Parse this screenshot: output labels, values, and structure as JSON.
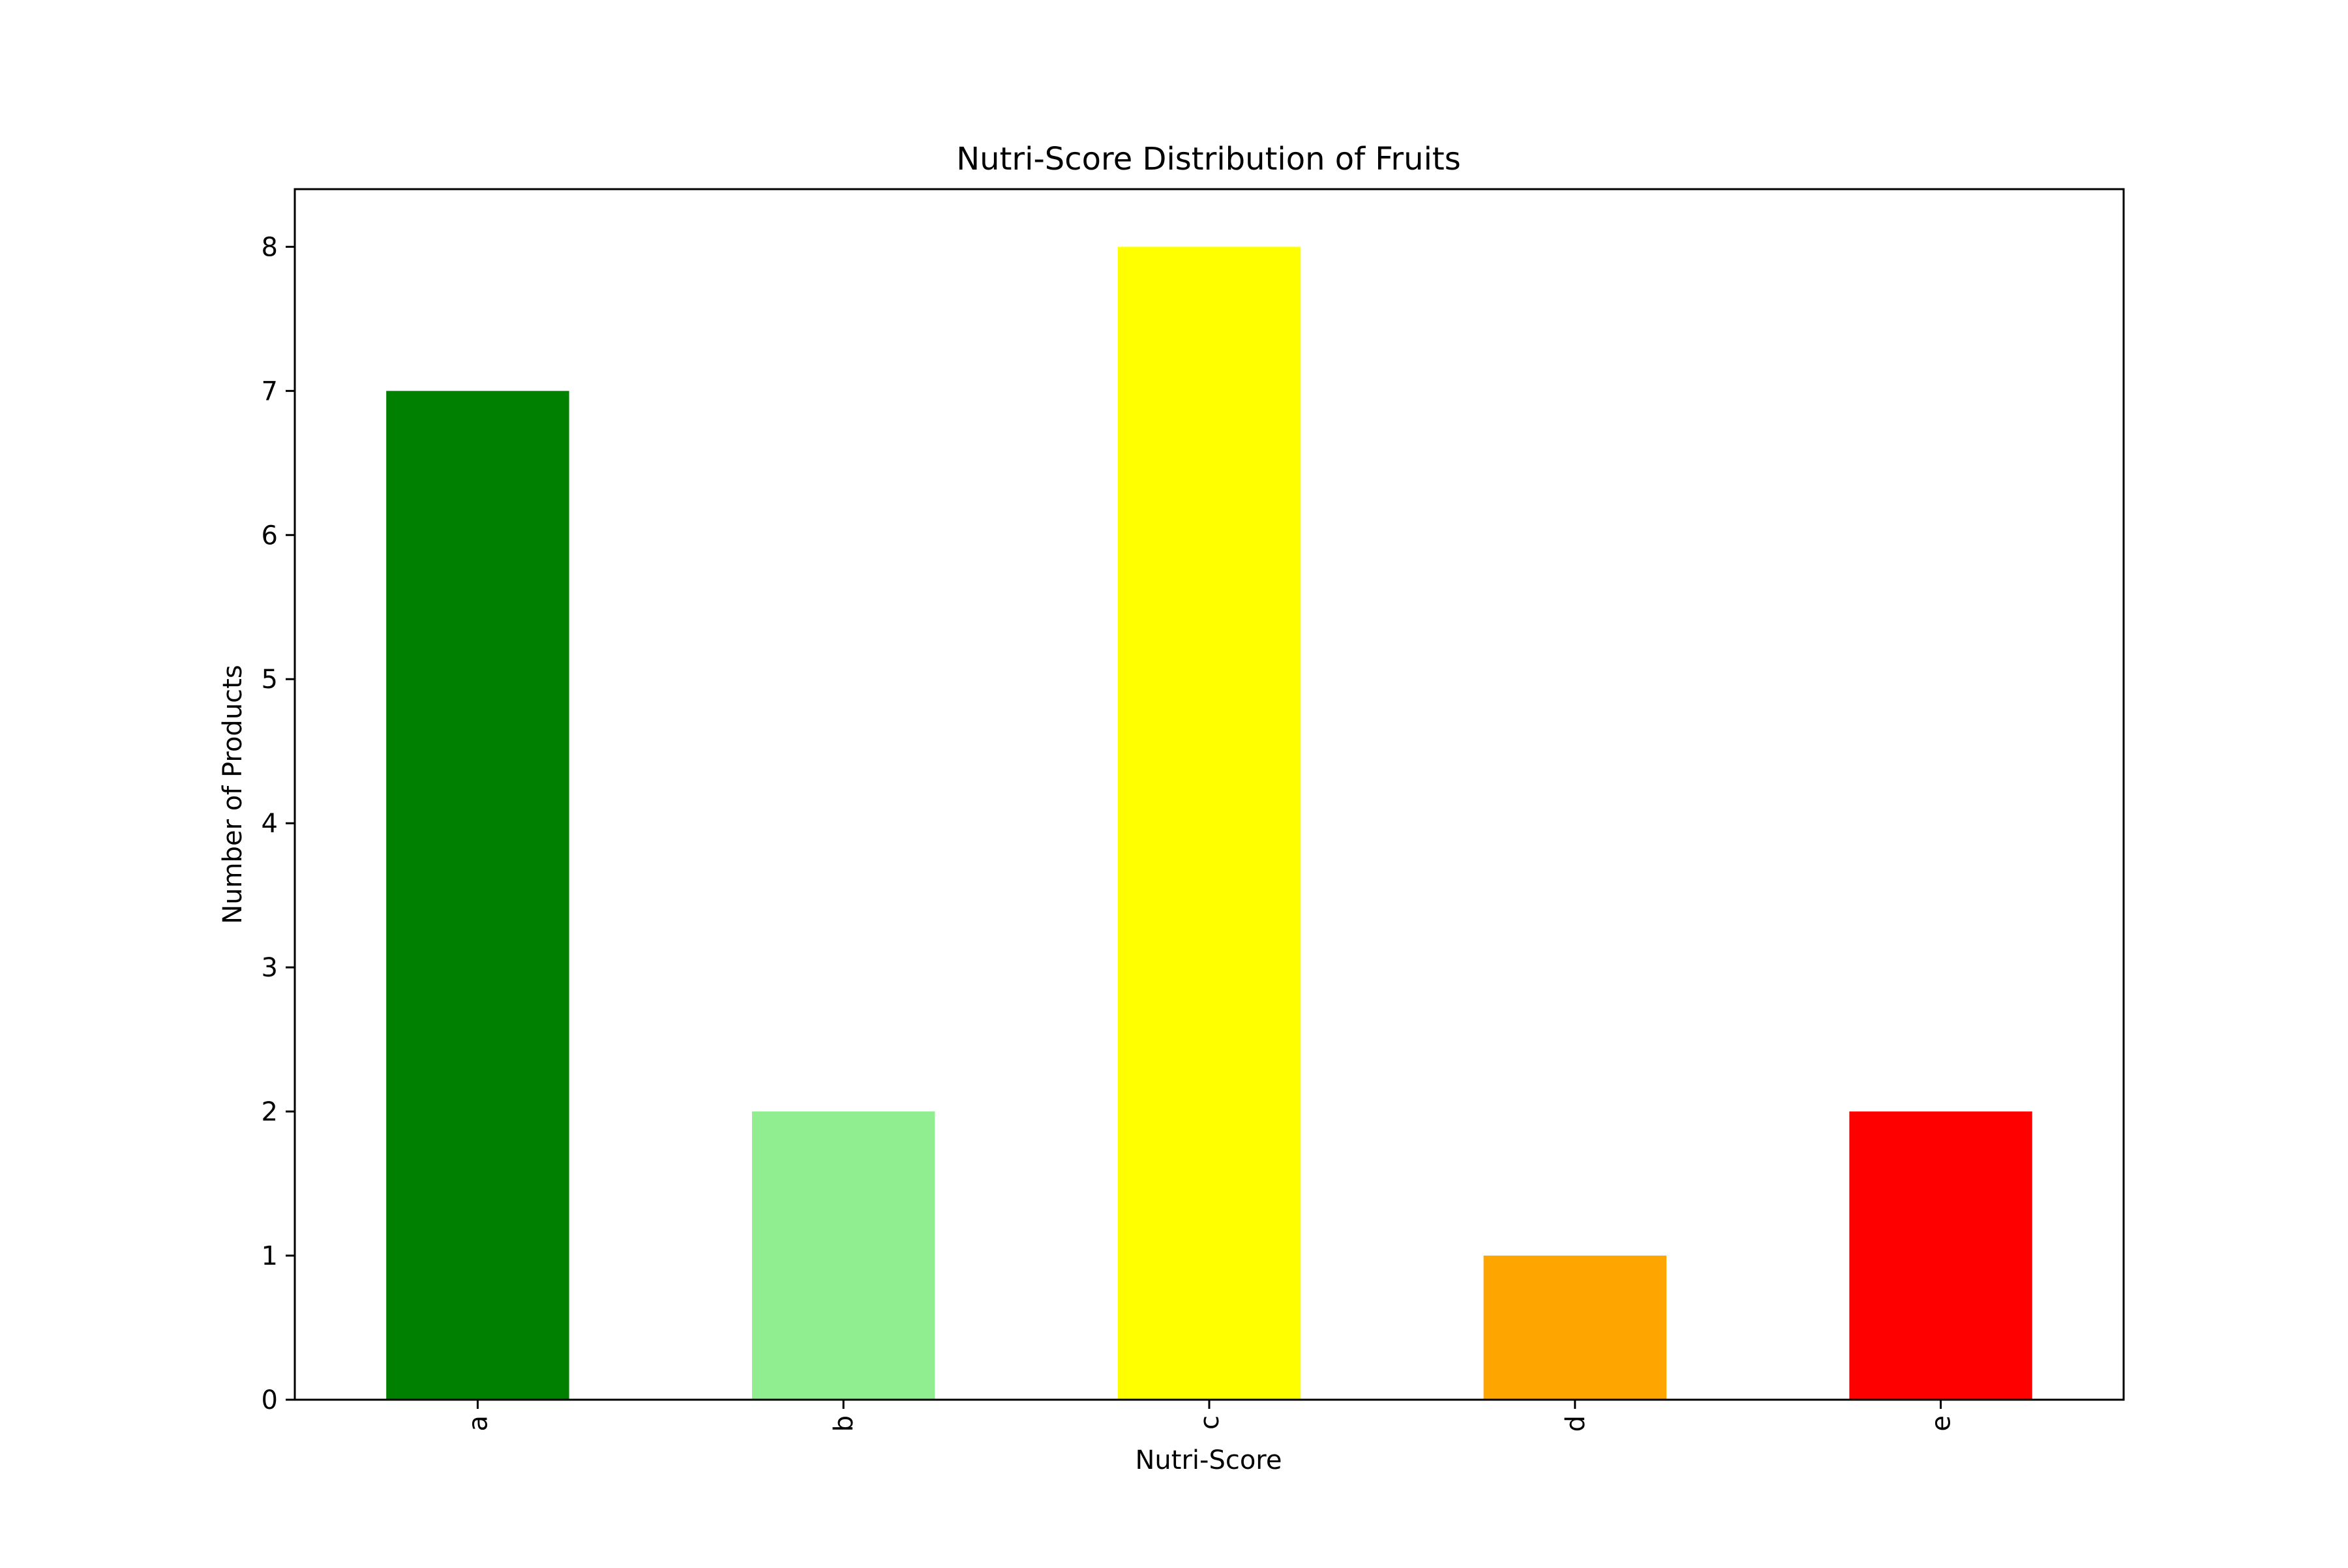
{
  "chart_data": {
    "type": "bar",
    "title": "Nutri-Score Distribution of Fruits",
    "xlabel": "Nutri-Score",
    "ylabel": "Number of Products",
    "categories": [
      "a",
      "b",
      "c",
      "d",
      "e"
    ],
    "values": [
      7,
      2,
      8,
      1,
      2
    ],
    "colors": [
      "#008000",
      "#90ee90",
      "#ffff00",
      "#ffa500",
      "#ff0000"
    ],
    "ylim": [
      0,
      8.4
    ],
    "yticks": [
      0,
      1,
      2,
      3,
      4,
      5,
      6,
      7,
      8
    ],
    "ytick_labels": [
      "0",
      "1",
      "2",
      "3",
      "4",
      "5",
      "6",
      "7",
      "8"
    ],
    "xtick_rotation": "vertical",
    "grid": false,
    "legend": "none"
  }
}
